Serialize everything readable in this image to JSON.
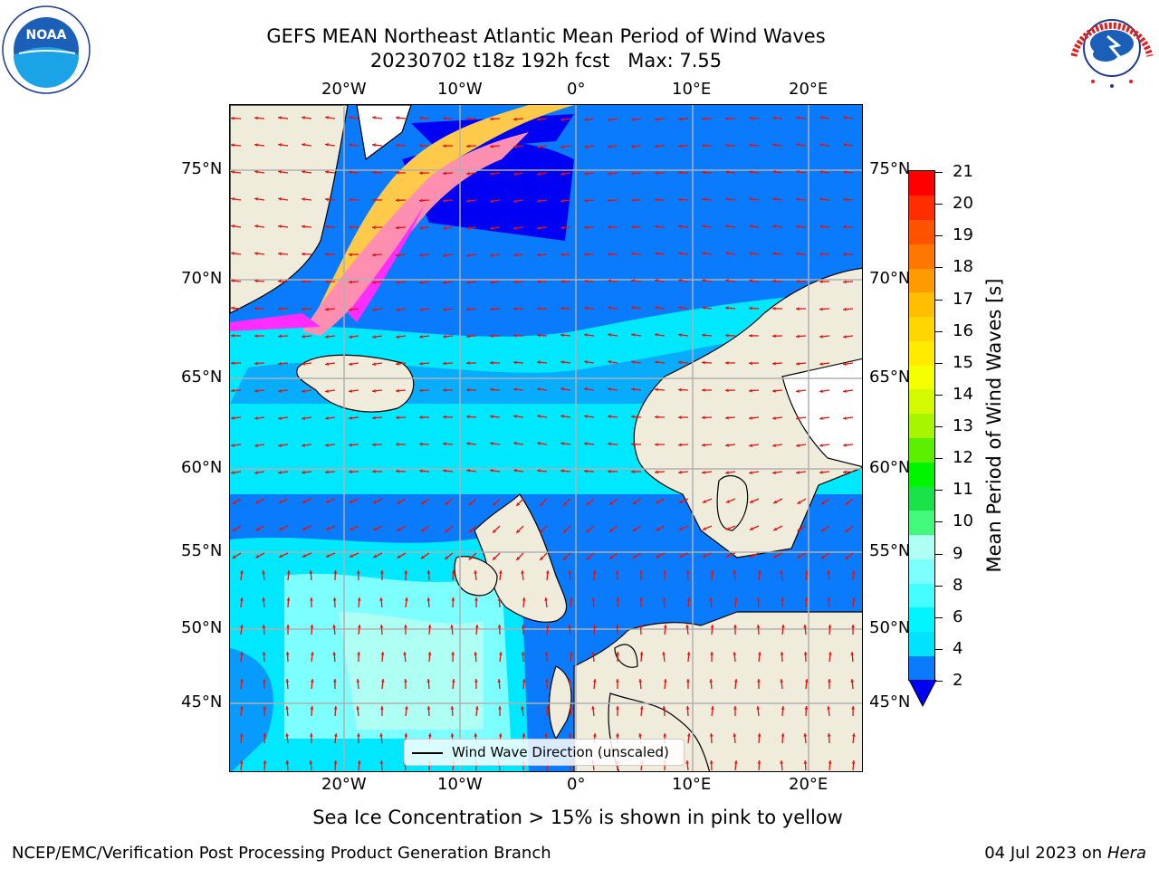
{
  "header": {
    "title_line1": "GEFS MEAN Northeast Atlantic Mean Period of Wind Waves",
    "title_line2": "20230702 t18z 192h fcst   Max: 7.55"
  },
  "logos": {
    "left": {
      "icon": "noaa-logo",
      "text": "NOAA"
    },
    "right": {
      "icon": "nws-logo",
      "text": "NATIONAL WEATHER SERVICE"
    }
  },
  "map": {
    "lon_ticks": [
      "20°W",
      "10°W",
      "0°",
      "10°E",
      "20°E"
    ],
    "lat_ticks": [
      "75°N",
      "70°N",
      "65°N",
      "60°N",
      "55°N",
      "50°N",
      "45°N"
    ],
    "legend_label": "Wind Wave Direction (unscaled)",
    "arrow_color": "#e8120c",
    "land_color": "#efecdc",
    "ice_colors": [
      "#ff2dff",
      "#ff8fb0",
      "#ffc94a",
      "#ffeb66"
    ]
  },
  "colorbar": {
    "title": "Mean Period of Wind Waves [s]",
    "tick_labels": [
      "21",
      "20",
      "19",
      "18",
      "17",
      "16",
      "15",
      "14",
      "13",
      "12",
      "11",
      "10",
      "9",
      "8",
      "6",
      "4",
      "2"
    ],
    "colors_bottom_to_top": [
      "#0b7bfd",
      "#00e3ff",
      "#00f5ff",
      "#44ffff",
      "#7dffff",
      "#aefff4",
      "#43f97c",
      "#1ae34a",
      "#00f500",
      "#5cf000",
      "#a8f500",
      "#d4fa00",
      "#f5ff00",
      "#ffea00",
      "#ffd500",
      "#ffbf00",
      "#ff9a00",
      "#ff7700",
      "#ff5300",
      "#ff2d00",
      "#ff0000"
    ],
    "extend_color": "#0000f5"
  },
  "notes": {
    "ice": "Sea Ice Concentration > 15% is shown in pink to yellow"
  },
  "footer": {
    "left": "NCEP/EMC/Verification Post Processing Product Generation Branch",
    "date": "04 Jul 2023 on",
    "host": "Hera"
  }
}
